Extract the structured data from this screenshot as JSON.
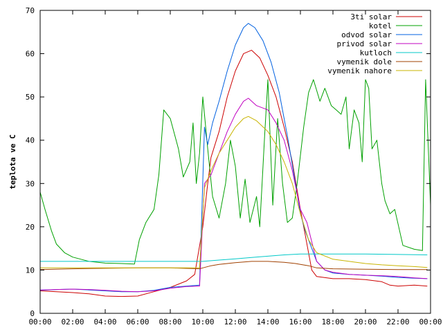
{
  "chart_data": {
    "type": "line",
    "ylabel": "teplota ve C",
    "ylim": [
      0,
      70
    ],
    "yticks": [
      0,
      10,
      20,
      30,
      40,
      50,
      60,
      70
    ],
    "xlim": [
      0,
      24
    ],
    "xticks": [
      0,
      2,
      4,
      6,
      8,
      10,
      12,
      14,
      16,
      18,
      20,
      22,
      24
    ],
    "xtick_labels": [
      "00:00",
      "02:00",
      "04:00",
      "06:00",
      "08:00",
      "10:00",
      "12:00",
      "14:00",
      "16:00",
      "18:00",
      "20:00",
      "22:00",
      "00:00"
    ],
    "grid": false,
    "legend_position": "top-right",
    "series": [
      {
        "name": "3ti solar",
        "color": "#cc0000",
        "points": [
          [
            0,
            5.2
          ],
          [
            1,
            5
          ],
          [
            2,
            4.8
          ],
          [
            3,
            4.5
          ],
          [
            4,
            4
          ],
          [
            5,
            3.9
          ],
          [
            6,
            4
          ],
          [
            7,
            5
          ],
          [
            8,
            6
          ],
          [
            9,
            7.5
          ],
          [
            9.5,
            9
          ],
          [
            10,
            20
          ],
          [
            10.3,
            30
          ],
          [
            10.5,
            36
          ],
          [
            11,
            42
          ],
          [
            11.5,
            50
          ],
          [
            12,
            56
          ],
          [
            12.5,
            60
          ],
          [
            13,
            60.8
          ],
          [
            13.5,
            59
          ],
          [
            14,
            55
          ],
          [
            14.5,
            50
          ],
          [
            15,
            43
          ],
          [
            15.5,
            35
          ],
          [
            16,
            24
          ],
          [
            16.3,
            18
          ],
          [
            16.7,
            10
          ],
          [
            17,
            8.5
          ],
          [
            18,
            8
          ],
          [
            19,
            8
          ],
          [
            20,
            7.8
          ],
          [
            21,
            7.3
          ],
          [
            21.5,
            6.5
          ],
          [
            22,
            6.3
          ],
          [
            23,
            6.5
          ],
          [
            23.8,
            6.3
          ]
        ]
      },
      {
        "name": "kotel",
        "color": "#00a000",
        "points": [
          [
            0,
            28
          ],
          [
            0.3,
            24
          ],
          [
            0.7,
            19
          ],
          [
            1,
            16
          ],
          [
            1.5,
            14
          ],
          [
            2,
            13
          ],
          [
            3,
            12
          ],
          [
            4,
            11.6
          ],
          [
            5,
            11.5
          ],
          [
            5.8,
            11.4
          ],
          [
            6.1,
            17
          ],
          [
            6.5,
            21
          ],
          [
            7,
            24
          ],
          [
            7.3,
            32
          ],
          [
            7.6,
            47
          ],
          [
            8,
            45
          ],
          [
            8.5,
            38
          ],
          [
            8.8,
            31.5
          ],
          [
            9.2,
            35
          ],
          [
            9.4,
            44
          ],
          [
            9.6,
            30
          ],
          [
            9.8,
            37
          ],
          [
            10,
            50
          ],
          [
            10.3,
            38
          ],
          [
            10.6,
            27
          ],
          [
            11,
            22
          ],
          [
            11.4,
            30
          ],
          [
            11.7,
            40
          ],
          [
            12,
            34
          ],
          [
            12.3,
            22
          ],
          [
            12.6,
            31
          ],
          [
            12.9,
            21
          ],
          [
            13.3,
            27
          ],
          [
            13.5,
            20
          ],
          [
            13.8,
            41
          ],
          [
            14,
            54
          ],
          [
            14.3,
            25
          ],
          [
            14.6,
            45
          ],
          [
            14.9,
            30
          ],
          [
            15.2,
            21
          ],
          [
            15.5,
            22
          ],
          [
            15.8,
            30
          ],
          [
            16.2,
            43
          ],
          [
            16.5,
            51
          ],
          [
            16.8,
            54
          ],
          [
            17.2,
            49
          ],
          [
            17.5,
            52
          ],
          [
            17.9,
            48
          ],
          [
            18.2,
            47
          ],
          [
            18.5,
            46
          ],
          [
            18.8,
            50
          ],
          [
            19,
            38
          ],
          [
            19.3,
            47
          ],
          [
            19.6,
            44
          ],
          [
            19.8,
            35
          ],
          [
            20,
            54
          ],
          [
            20.2,
            52
          ],
          [
            20.4,
            38
          ],
          [
            20.7,
            40
          ],
          [
            21,
            30
          ],
          [
            21.2,
            26
          ],
          [
            21.5,
            23
          ],
          [
            21.8,
            24
          ],
          [
            22.3,
            15.7
          ],
          [
            23,
            14.8
          ],
          [
            23.5,
            14.5
          ],
          [
            23.7,
            54
          ],
          [
            24,
            25
          ]
        ]
      },
      {
        "name": "odvod solar",
        "color": "#0060e0",
        "points": [
          [
            0,
            5.3
          ],
          [
            1,
            5.5
          ],
          [
            2,
            5.6
          ],
          [
            3,
            5.4
          ],
          [
            4,
            5.2
          ],
          [
            5,
            5
          ],
          [
            6,
            5
          ],
          [
            7,
            5.3
          ],
          [
            8,
            6
          ],
          [
            9,
            6.3
          ],
          [
            9.8,
            6.5
          ],
          [
            10.1,
            43
          ],
          [
            10.3,
            39
          ],
          [
            10.6,
            44
          ],
          [
            11,
            49
          ],
          [
            11.5,
            56
          ],
          [
            12,
            62
          ],
          [
            12.5,
            66
          ],
          [
            12.8,
            67
          ],
          [
            13.2,
            66
          ],
          [
            13.7,
            63
          ],
          [
            14.2,
            58
          ],
          [
            14.7,
            51
          ],
          [
            15.2,
            41
          ],
          [
            15.7,
            30
          ],
          [
            16,
            23
          ],
          [
            16.3,
            19
          ],
          [
            16.7,
            15
          ],
          [
            17,
            12
          ],
          [
            17.5,
            10
          ],
          [
            18,
            9.3
          ],
          [
            19,
            9
          ],
          [
            20,
            8.8
          ],
          [
            21,
            8.6
          ],
          [
            22,
            8.3
          ],
          [
            23,
            8.1
          ],
          [
            23.8,
            8
          ]
        ]
      },
      {
        "name": "privod solar",
        "color": "#c000c0",
        "points": [
          [
            0,
            5.4
          ],
          [
            1,
            5.5
          ],
          [
            2,
            5.6
          ],
          [
            3,
            5.5
          ],
          [
            4,
            5.3
          ],
          [
            5,
            5.1
          ],
          [
            6,
            5
          ],
          [
            7,
            5.2
          ],
          [
            8,
            5.8
          ],
          [
            9,
            6.2
          ],
          [
            9.8,
            6.3
          ],
          [
            10.1,
            30
          ],
          [
            10.5,
            32
          ],
          [
            11,
            37
          ],
          [
            11.5,
            42
          ],
          [
            12,
            46
          ],
          [
            12.5,
            49
          ],
          [
            12.8,
            49.7
          ],
          [
            13.3,
            48
          ],
          [
            14,
            47
          ],
          [
            14.5,
            44
          ],
          [
            15,
            40
          ],
          [
            15.5,
            33
          ],
          [
            16,
            24
          ],
          [
            16.4,
            21
          ],
          [
            16.8,
            15
          ],
          [
            17,
            12
          ],
          [
            17.5,
            10
          ],
          [
            18,
            9.5
          ],
          [
            19,
            9
          ],
          [
            20,
            8.8
          ],
          [
            21,
            8.7
          ],
          [
            22,
            8.5
          ],
          [
            23,
            8.2
          ],
          [
            23.8,
            8
          ]
        ]
      },
      {
        "name": "kutloch",
        "color": "#00c8c8",
        "points": [
          [
            0,
            12
          ],
          [
            2,
            12
          ],
          [
            4,
            12
          ],
          [
            6,
            12
          ],
          [
            8,
            12
          ],
          [
            10,
            12
          ],
          [
            11,
            12.3
          ],
          [
            12,
            12.6
          ],
          [
            13,
            12.9
          ],
          [
            14,
            13.2
          ],
          [
            15,
            13.5
          ],
          [
            16,
            13.7
          ],
          [
            18,
            13.7
          ],
          [
            20,
            13.7
          ],
          [
            22,
            13.6
          ],
          [
            23.8,
            13.5
          ]
        ]
      },
      {
        "name": "vymenik dole",
        "color": "#a04000",
        "points": [
          [
            0,
            10.1
          ],
          [
            2,
            10.3
          ],
          [
            4,
            10.4
          ],
          [
            6,
            10.5
          ],
          [
            8,
            10.5
          ],
          [
            9.8,
            10.3
          ],
          [
            10,
            10.5
          ],
          [
            10.5,
            11
          ],
          [
            11,
            11.3
          ],
          [
            12,
            11.7
          ],
          [
            13,
            12
          ],
          [
            14,
            12
          ],
          [
            15,
            11.8
          ],
          [
            15.7,
            11.5
          ],
          [
            16,
            11.3
          ],
          [
            16.5,
            11
          ],
          [
            17,
            10.5
          ],
          [
            18,
            10.3
          ],
          [
            20,
            10.2
          ],
          [
            22,
            10.1
          ],
          [
            23.8,
            10.1
          ]
        ]
      },
      {
        "name": "vymenik nahore",
        "color": "#c8b400",
        "points": [
          [
            0,
            10.5
          ],
          [
            2,
            10.5
          ],
          [
            4,
            10.5
          ],
          [
            6,
            10.5
          ],
          [
            8,
            10.5
          ],
          [
            9.8,
            10.5
          ],
          [
            10.1,
            29
          ],
          [
            10.5,
            33
          ],
          [
            11,
            37
          ],
          [
            11.5,
            40
          ],
          [
            12,
            43
          ],
          [
            12.5,
            45
          ],
          [
            12.8,
            45.5
          ],
          [
            13.3,
            44.5
          ],
          [
            14,
            42
          ],
          [
            14.5,
            39
          ],
          [
            15,
            35
          ],
          [
            15.5,
            30
          ],
          [
            16,
            23
          ],
          [
            16.5,
            17
          ],
          [
            17,
            14
          ],
          [
            18,
            12.5
          ],
          [
            19,
            12
          ],
          [
            20,
            11.5
          ],
          [
            21,
            11.2
          ],
          [
            22,
            11
          ],
          [
            23,
            10.8
          ],
          [
            23.8,
            10.6
          ]
        ]
      }
    ]
  }
}
